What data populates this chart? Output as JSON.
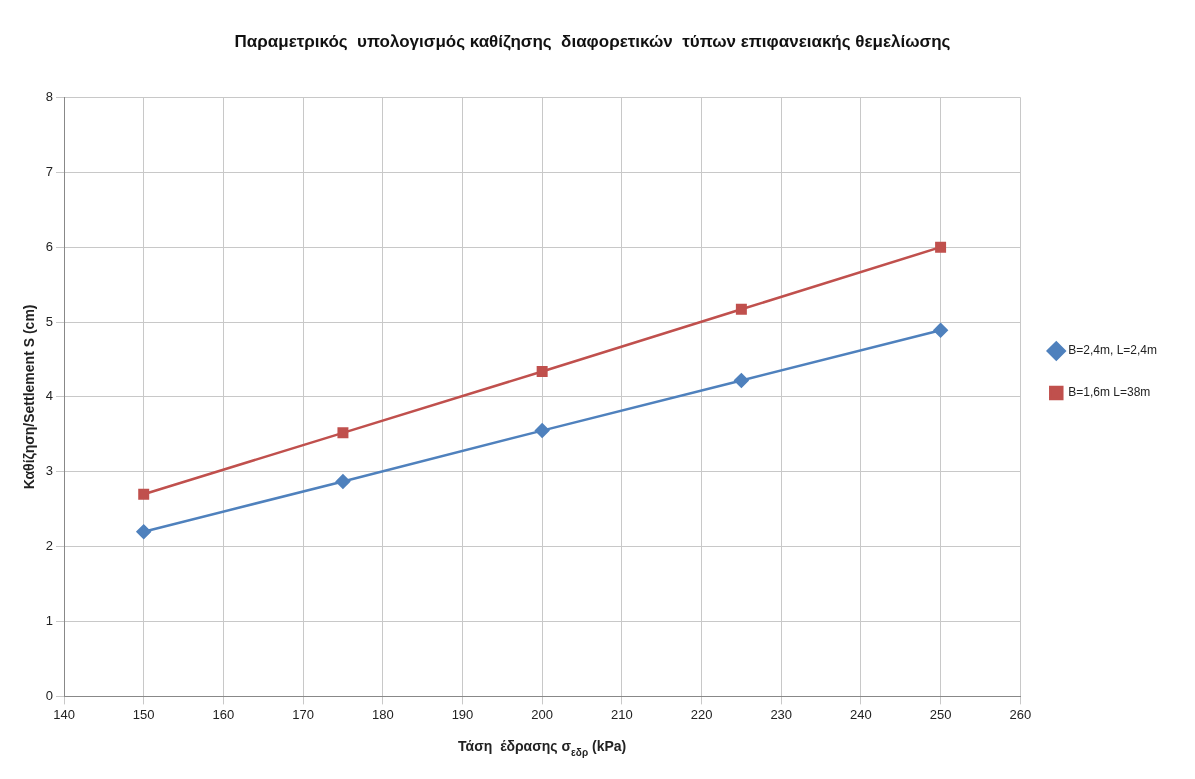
{
  "chart_data": {
    "type": "line",
    "title": "Παραμετρικός  υπολογισμός καθίζησης  διαφορετικών  τύπων επιφανειακής θεμελίωσης",
    "xlabel": "Τάση  έδρασης σ$_{εδρ}$ (kPa)",
    "ylabel": "Καθίζηση/Settlement S (cm)",
    "x": [
      150,
      175,
      200,
      225,
      250
    ],
    "series": [
      {
        "name": "B=2,4m, L=2,4m",
        "color": "#4f81bd",
        "marker": "diamond",
        "values": [
          2.2,
          2.87,
          3.55,
          4.22,
          4.89
        ]
      },
      {
        "name": "B=1,6m L=38m",
        "color": "#c0504d",
        "marker": "square",
        "values": [
          2.7,
          3.52,
          4.34,
          5.17,
          6.0
        ]
      }
    ],
    "xlim": [
      140,
      260
    ],
    "xticks": [
      140,
      150,
      160,
      170,
      180,
      190,
      200,
      210,
      220,
      230,
      240,
      250,
      260
    ],
    "ylim": [
      0,
      8
    ],
    "yticks": [
      0,
      1,
      2,
      3,
      4,
      5,
      6,
      7,
      8
    ],
    "grid": true,
    "legend": "right",
    "line_style": "solid"
  }
}
